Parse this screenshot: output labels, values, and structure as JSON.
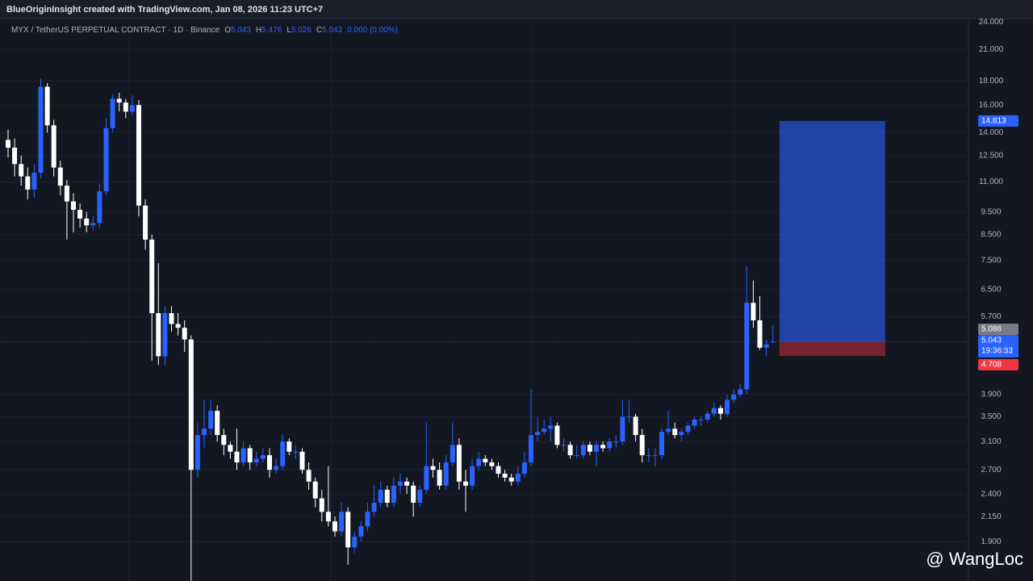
{
  "header": {
    "credit": "BlueOriginInsight created with TradingView.com, Jan 08, 2026 11:23 UTC+7",
    "symbol": "MYX / TetherUS PERPETUAL CONTRACT · 1D · Binance",
    "o_key": "O",
    "o_val": "5.043",
    "h_key": "H",
    "h_val": "5.476",
    "l_key": "L",
    "l_val": "5.026",
    "c_key": "C",
    "c_val": "5.043",
    "change": "0.000 (0.00%)"
  },
  "watermark": "@ WangLoc",
  "chart_data": {
    "type": "candlestick",
    "log_scale": true,
    "grid": true,
    "up_color": "#2962ff",
    "down_color": "#ffffff",
    "ylim": [
      1.57,
      24.5
    ],
    "yticks": [
      {
        "value": 24,
        "label": "24.000"
      },
      {
        "value": 21,
        "label": "21.000"
      },
      {
        "value": 18,
        "label": "18.000"
      },
      {
        "value": 16,
        "label": "16.000"
      },
      {
        "value": 14,
        "label": "14.000"
      },
      {
        "value": 12.5,
        "label": "12.500"
      },
      {
        "value": 11,
        "label": "11.000"
      },
      {
        "value": 9.5,
        "label": "9.500"
      },
      {
        "value": 8.5,
        "label": "8.500"
      },
      {
        "value": 7.5,
        "label": "7.500"
      },
      {
        "value": 6.5,
        "label": "6.500"
      },
      {
        "value": 5.7,
        "label": "5.700"
      },
      {
        "value": 3.9,
        "label": "3.900"
      },
      {
        "value": 3.5,
        "label": "3.500"
      },
      {
        "value": 3.1,
        "label": "3.100"
      },
      {
        "value": 2.7,
        "label": "2.700"
      },
      {
        "value": 2.4,
        "label": "2.400"
      },
      {
        "value": 2.15,
        "label": "2.150"
      },
      {
        "value": 1.9,
        "label": "1.900"
      }
    ],
    "candles": [
      [
        13.5,
        14.2,
        12.4,
        13.0
      ],
      [
        13.0,
        13.6,
        11.3,
        12.0
      ],
      [
        12.0,
        12.5,
        10.8,
        11.3
      ],
      [
        11.3,
        11.8,
        10.1,
        10.6
      ],
      [
        10.6,
        12.0,
        10.2,
        11.5
      ],
      [
        11.5,
        18.2,
        11.2,
        17.5
      ],
      [
        17.5,
        17.8,
        14.0,
        14.5
      ],
      [
        14.5,
        14.9,
        11.3,
        11.8
      ],
      [
        11.8,
        12.2,
        10.3,
        10.8
      ],
      [
        10.8,
        11.1,
        8.3,
        10.0
      ],
      [
        10.0,
        10.4,
        8.6,
        9.6
      ],
      [
        9.6,
        9.9,
        8.8,
        9.2
      ],
      [
        9.2,
        9.5,
        8.6,
        8.9
      ],
      [
        8.9,
        9.3,
        8.7,
        9.0
      ],
      [
        9.0,
        10.9,
        8.8,
        10.5
      ],
      [
        10.5,
        15.0,
        10.3,
        14.3
      ],
      [
        14.3,
        16.9,
        14.0,
        16.5
      ],
      [
        16.5,
        17.0,
        15.5,
        16.2
      ],
      [
        16.2,
        16.5,
        15.0,
        15.5
      ],
      [
        15.5,
        16.8,
        15.2,
        16.0
      ],
      [
        16.0,
        16.4,
        9.3,
        9.8
      ],
      [
        9.8,
        10.1,
        7.9,
        8.3
      ],
      [
        8.3,
        8.5,
        4.6,
        5.8
      ],
      [
        5.8,
        7.4,
        4.5,
        4.7
      ],
      [
        4.7,
        6.0,
        4.5,
        5.8
      ],
      [
        5.8,
        6.0,
        5.3,
        5.5
      ],
      [
        5.5,
        5.8,
        5.2,
        5.4
      ],
      [
        5.4,
        5.6,
        4.8,
        5.1
      ],
      [
        5.1,
        5.2,
        1.55,
        2.7
      ],
      [
        2.7,
        3.4,
        2.6,
        3.2
      ],
      [
        3.2,
        3.8,
        3.0,
        3.3
      ],
      [
        3.3,
        3.8,
        3.2,
        3.6
      ],
      [
        3.6,
        3.7,
        3.1,
        3.2
      ],
      [
        3.2,
        3.3,
        2.9,
        3.05
      ],
      [
        3.05,
        3.1,
        2.85,
        2.95
      ],
      [
        2.95,
        3.3,
        2.7,
        2.8
      ],
      [
        2.8,
        3.1,
        2.75,
        3.0
      ],
      [
        3.0,
        3.05,
        2.7,
        2.8
      ],
      [
        2.8,
        2.95,
        2.75,
        2.85
      ],
      [
        2.85,
        3.0,
        2.8,
        2.9
      ],
      [
        2.9,
        3.0,
        2.6,
        2.7
      ],
      [
        2.7,
        2.85,
        2.65,
        2.75
      ],
      [
        2.75,
        3.2,
        2.7,
        3.1
      ],
      [
        3.1,
        3.15,
        2.9,
        2.95
      ],
      [
        2.95,
        3.05,
        2.85,
        2.95
      ],
      [
        2.95,
        3.0,
        2.65,
        2.7
      ],
      [
        2.7,
        2.8,
        2.45,
        2.55
      ],
      [
        2.55,
        2.6,
        2.25,
        2.35
      ],
      [
        2.35,
        2.45,
        2.1,
        2.2
      ],
      [
        2.2,
        2.75,
        2.05,
        2.1
      ],
      [
        2.1,
        2.15,
        1.95,
        2.0
      ],
      [
        2.0,
        2.3,
        1.95,
        2.2
      ],
      [
        2.2,
        2.25,
        1.7,
        1.85
      ],
      [
        1.85,
        2.0,
        1.8,
        1.95
      ],
      [
        1.95,
        2.1,
        1.9,
        2.05
      ],
      [
        2.05,
        2.3,
        2.0,
        2.2
      ],
      [
        2.2,
        2.5,
        2.15,
        2.3
      ],
      [
        2.3,
        2.55,
        2.25,
        2.45
      ],
      [
        2.45,
        2.5,
        2.25,
        2.3
      ],
      [
        2.3,
        2.6,
        2.25,
        2.5
      ],
      [
        2.5,
        2.65,
        2.4,
        2.55
      ],
      [
        2.55,
        2.6,
        2.4,
        2.5
      ],
      [
        2.5,
        2.55,
        2.15,
        2.3
      ],
      [
        2.3,
        2.5,
        2.25,
        2.45
      ],
      [
        2.45,
        3.4,
        2.4,
        2.75
      ],
      [
        2.75,
        2.85,
        2.6,
        2.7
      ],
      [
        2.7,
        2.8,
        2.45,
        2.5
      ],
      [
        2.5,
        2.9,
        2.45,
        2.8
      ],
      [
        2.8,
        3.4,
        2.75,
        3.05
      ],
      [
        3.05,
        3.15,
        2.45,
        2.55
      ],
      [
        2.55,
        2.7,
        2.2,
        2.5
      ],
      [
        2.5,
        2.85,
        2.45,
        2.75
      ],
      [
        2.75,
        2.95,
        2.7,
        2.85
      ],
      [
        2.85,
        2.9,
        2.75,
        2.8
      ],
      [
        2.8,
        2.85,
        2.7,
        2.75
      ],
      [
        2.75,
        2.8,
        2.6,
        2.65
      ],
      [
        2.65,
        2.7,
        2.55,
        2.6
      ],
      [
        2.6,
        2.65,
        2.5,
        2.55
      ],
      [
        2.55,
        2.75,
        2.5,
        2.65
      ],
      [
        2.65,
        2.95,
        2.6,
        2.8
      ],
      [
        2.8,
        4.0,
        2.75,
        3.2
      ],
      [
        3.2,
        3.5,
        3.1,
        3.25
      ],
      [
        3.25,
        3.45,
        3.2,
        3.3
      ],
      [
        3.3,
        3.5,
        3.1,
        3.35
      ],
      [
        3.35,
        3.4,
        3.0,
        3.05
      ],
      [
        3.05,
        3.15,
        2.95,
        3.05
      ],
      [
        3.05,
        3.1,
        2.85,
        2.9
      ],
      [
        2.9,
        3.05,
        2.85,
        2.9
      ],
      [
        2.9,
        3.1,
        2.85,
        3.05
      ],
      [
        3.05,
        3.1,
        2.9,
        2.95
      ],
      [
        2.95,
        3.1,
        2.75,
        3.05
      ],
      [
        3.05,
        3.1,
        2.95,
        3.0
      ],
      [
        3.0,
        3.15,
        2.95,
        3.1
      ],
      [
        3.1,
        3.2,
        3.0,
        3.1
      ],
      [
        3.1,
        3.8,
        3.05,
        3.5
      ],
      [
        3.5,
        3.8,
        3.4,
        3.5
      ],
      [
        3.5,
        3.55,
        3.1,
        3.2
      ],
      [
        3.2,
        3.3,
        2.8,
        2.9
      ],
      [
        2.9,
        3.0,
        2.8,
        2.9
      ],
      [
        2.9,
        3.0,
        2.75,
        2.9
      ],
      [
        2.9,
        3.3,
        2.85,
        3.25
      ],
      [
        3.25,
        3.6,
        3.2,
        3.3
      ],
      [
        3.3,
        3.4,
        3.15,
        3.2
      ],
      [
        3.2,
        3.3,
        3.1,
        3.25
      ],
      [
        3.25,
        3.4,
        3.2,
        3.35
      ],
      [
        3.35,
        3.5,
        3.3,
        3.45
      ],
      [
        3.45,
        3.5,
        3.35,
        3.45
      ],
      [
        3.45,
        3.6,
        3.4,
        3.55
      ],
      [
        3.55,
        3.75,
        3.5,
        3.65
      ],
      [
        3.65,
        3.7,
        3.45,
        3.55
      ],
      [
        3.55,
        3.9,
        3.5,
        3.8
      ],
      [
        3.8,
        4.0,
        3.75,
        3.9
      ],
      [
        3.9,
        4.1,
        3.85,
        4.0
      ],
      [
        4.0,
        7.3,
        3.9,
        6.1
      ],
      [
        6.1,
        6.8,
        5.4,
        5.6
      ],
      [
        5.6,
        6.3,
        4.85,
        4.9
      ],
      [
        4.9,
        5.1,
        4.7,
        4.98
      ],
      [
        5.043,
        5.476,
        5.026,
        5.043
      ]
    ],
    "position": {
      "target": 14.813,
      "entry": 5.043,
      "stop": 4.708,
      "target_color": "#2962ff",
      "stop_color": "#f23645"
    },
    "price_markers": [
      {
        "value": 14.813,
        "color": "#2962ff"
      },
      {
        "value": 5.086,
        "color": "#787b86"
      },
      {
        "value": 5.043,
        "color": "#2962ff",
        "countdown": "19:36:33"
      },
      {
        "value": 4.708,
        "color": "#f23645"
      }
    ]
  }
}
